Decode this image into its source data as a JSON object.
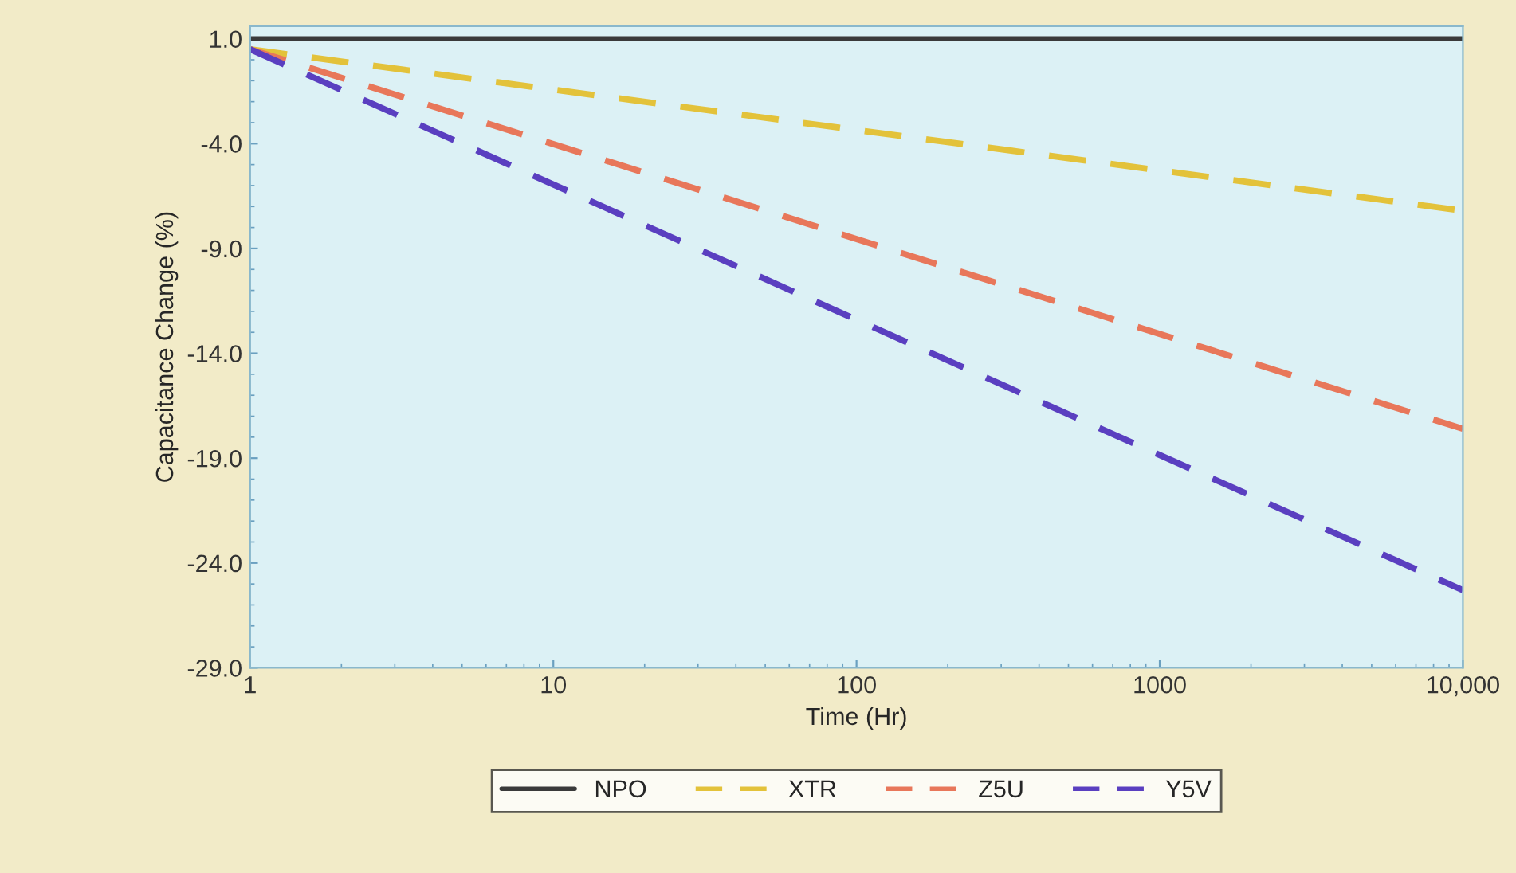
{
  "chart_data": {
    "type": "line",
    "xlabel": "Time (Hr)",
    "ylabel": "Capacitance Change (%)",
    "log": "x",
    "xlim": [
      1,
      10000
    ],
    "ylim": [
      -29,
      1.6
    ],
    "xticks": [
      1,
      10,
      100,
      1000,
      {
        "value": 10000,
        "label": "10,000"
      }
    ],
    "yticks": [
      {
        "value": 1,
        "label": "1.0"
      },
      {
        "value": -4,
        "label": "-4.0"
      },
      {
        "value": -9,
        "label": "-9.0"
      },
      {
        "value": -14,
        "label": "-14.0"
      },
      {
        "value": -19,
        "label": "-19.0"
      },
      {
        "value": -24,
        "label": "-24.0"
      },
      {
        "value": -29,
        "label": "-29.0"
      }
    ],
    "x": [
      1,
      10000
    ],
    "grid": false,
    "legend": "bottom",
    "series": [
      {
        "name": "NPO",
        "color": "#3a3a3a",
        "line_style": "solid",
        "values": [
          1.0,
          1.0
        ]
      },
      {
        "name": "XTR",
        "color": "#e3c23a",
        "line_style": "dashed",
        "values": [
          0.5,
          -7.2
        ]
      },
      {
        "name": "Z5U",
        "color": "#e8775a",
        "line_style": "dashed",
        "values": [
          0.5,
          -17.6
        ]
      },
      {
        "name": "Y5V",
        "color": "#5a3fc0",
        "line_style": "dashed",
        "values": [
          0.5,
          -25.3
        ]
      }
    ]
  }
}
